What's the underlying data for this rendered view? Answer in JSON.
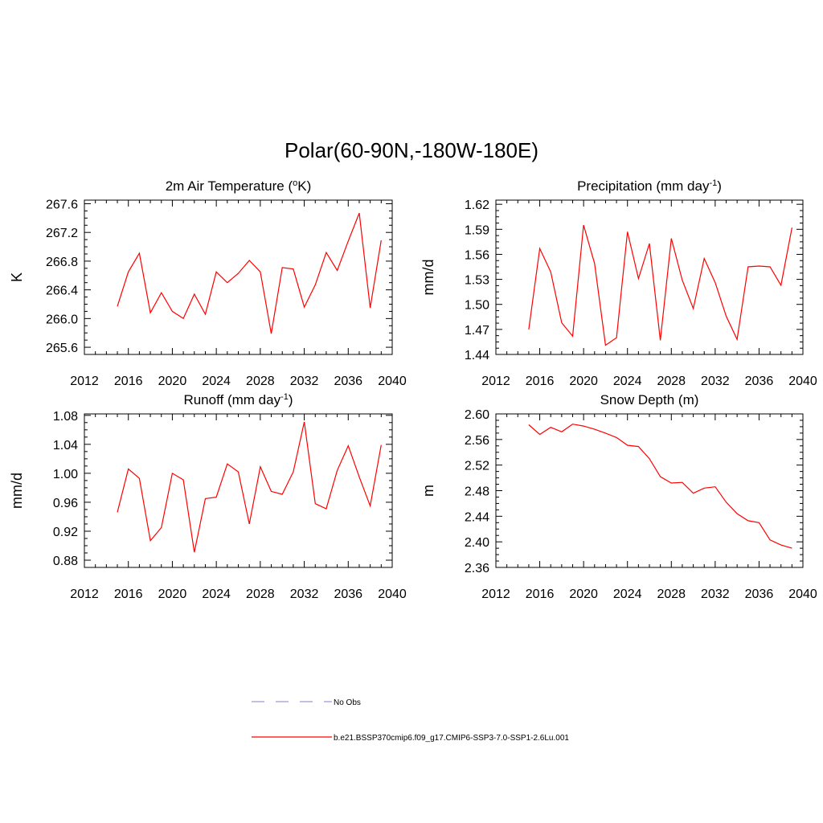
{
  "title": "Polar(60-90N,-180W-180E)",
  "legend": {
    "obs_label": "No Obs",
    "model_label": "b.e21.BSSP370cmip6.f09_g17.CMIP6-SSP3-7.0-SSP1-2.6Lu.001",
    "obs_color": "#9999dd",
    "model_color": "#ff0000"
  },
  "chart_data": [
    {
      "type": "line",
      "title": "2m Air Temperature (°K)",
      "title_main": "2m Air Temperature (",
      "title_sup": "o",
      "title_tail": "K)",
      "xlabel": "",
      "ylabel": "K",
      "xlim": [
        2012,
        2040
      ],
      "ylim": [
        265.5,
        267.65
      ],
      "xticks": [
        "2012",
        "2016",
        "2020",
        "2024",
        "2028",
        "2032",
        "2036",
        "2040"
      ],
      "yticks": [
        "265.6",
        "266.0",
        "266.4",
        "266.8",
        "267.2",
        "267.6"
      ],
      "grid": false,
      "series": [
        {
          "name": "b.e21.BSSP370cmip6.f09_g17.CMIP6-SSP3-7.0-SSP1-2.6Lu.001",
          "color": "#ff0000",
          "x": [
            2015,
            2016,
            2017,
            2018,
            2019,
            2020,
            2021,
            2022,
            2023,
            2024,
            2025,
            2026,
            2027,
            2028,
            2029,
            2030,
            2031,
            2032,
            2033,
            2034,
            2035,
            2036,
            2037,
            2038,
            2039
          ],
          "values": [
            266.17,
            266.65,
            266.91,
            266.08,
            266.36,
            266.1,
            266.0,
            266.34,
            266.06,
            266.65,
            266.5,
            266.63,
            266.81,
            266.65,
            265.79,
            266.71,
            266.69,
            266.16,
            266.47,
            266.92,
            266.67,
            267.08,
            267.47,
            266.15,
            267.09
          ]
        }
      ]
    },
    {
      "type": "line",
      "title": "Precipitation (mm day-1)",
      "title_main": "Precipitation (mm day",
      "title_sup": "-1",
      "title_tail": ")",
      "xlabel": "",
      "ylabel": "mm/d",
      "xlim": [
        2012,
        2040
      ],
      "ylim": [
        1.44,
        1.625
      ],
      "xticks": [
        "2012",
        "2016",
        "2020",
        "2024",
        "2028",
        "2032",
        "2036",
        "2040"
      ],
      "yticks": [
        "1.44",
        "1.47",
        "1.50",
        "1.53",
        "1.56",
        "1.59",
        "1.62"
      ],
      "grid": false,
      "series": [
        {
          "name": "b.e21.BSSP370cmip6.f09_g17.CMIP6-SSP3-7.0-SSP1-2.6Lu.001",
          "color": "#ff0000",
          "x": [
            2015,
            2016,
            2017,
            2018,
            2019,
            2020,
            2021,
            2022,
            2023,
            2024,
            2025,
            2026,
            2027,
            2028,
            2029,
            2030,
            2031,
            2032,
            2033,
            2034,
            2035,
            2036,
            2037,
            2038,
            2039
          ],
          "values": [
            1.47,
            1.567,
            1.539,
            1.478,
            1.462,
            1.595,
            1.549,
            1.451,
            1.46,
            1.587,
            1.531,
            1.573,
            1.457,
            1.579,
            1.529,
            1.495,
            1.555,
            1.526,
            1.486,
            1.458,
            1.545,
            1.546,
            1.545,
            1.523,
            1.592
          ]
        }
      ]
    },
    {
      "type": "line",
      "title": "Runoff (mm day-1)",
      "title_main": "Runoff (mm day",
      "title_sup": "-1",
      "title_tail": ")",
      "xlabel": "",
      "ylabel": "mm/d",
      "xlim": [
        2012,
        2040
      ],
      "ylim": [
        0.87,
        1.082
      ],
      "xticks": [
        "2012",
        "2016",
        "2020",
        "2024",
        "2028",
        "2032",
        "2036",
        "2040"
      ],
      "yticks": [
        "0.88",
        "0.92",
        "0.96",
        "1.00",
        "1.04",
        "1.08"
      ],
      "grid": false,
      "series": [
        {
          "name": "b.e21.BSSP370cmip6.f09_g17.CMIP6-SSP3-7.0-SSP1-2.6Lu.001",
          "color": "#ff0000",
          "x": [
            2015,
            2016,
            2017,
            2018,
            2019,
            2020,
            2021,
            2022,
            2023,
            2024,
            2025,
            2026,
            2027,
            2028,
            2029,
            2030,
            2031,
            2032,
            2033,
            2034,
            2035,
            2036,
            2037,
            2038,
            2039
          ],
          "values": [
            0.946,
            1.006,
            0.993,
            0.907,
            0.925,
            1.0,
            0.991,
            0.891,
            0.965,
            0.967,
            1.013,
            1.002,
            0.93,
            1.009,
            0.975,
            0.971,
            1.002,
            1.071,
            0.958,
            0.951,
            1.004,
            1.038,
            0.995,
            0.955,
            1.039
          ]
        }
      ]
    },
    {
      "type": "line",
      "title": "Snow Depth (m)",
      "title_main": "Snow Depth (m)",
      "title_sup": "",
      "title_tail": "",
      "xlabel": "",
      "ylabel": "m",
      "xlim": [
        2012,
        2040
      ],
      "ylim": [
        2.36,
        2.6
      ],
      "xticks": [
        "2012",
        "2016",
        "2020",
        "2024",
        "2028",
        "2032",
        "2036",
        "2040"
      ],
      "yticks": [
        "2.36",
        "2.40",
        "2.44",
        "2.48",
        "2.52",
        "2.56",
        "2.60"
      ],
      "grid": false,
      "series": [
        {
          "name": "b.e21.BSSP370cmip6.f09_g17.CMIP6-SSP3-7.0-SSP1-2.6Lu.001",
          "color": "#ff0000",
          "x": [
            2015,
            2016,
            2017,
            2018,
            2019,
            2020,
            2021,
            2022,
            2023,
            2024,
            2025,
            2026,
            2027,
            2028,
            2029,
            2030,
            2031,
            2032,
            2033,
            2034,
            2035,
            2036,
            2037,
            2038,
            2039
          ],
          "values": [
            2.583,
            2.568,
            2.579,
            2.572,
            2.584,
            2.581,
            2.576,
            2.57,
            2.563,
            2.551,
            2.549,
            2.53,
            2.502,
            2.492,
            2.493,
            2.476,
            2.484,
            2.486,
            2.462,
            2.444,
            2.433,
            2.43,
            2.403,
            2.395,
            2.39
          ]
        }
      ]
    }
  ]
}
